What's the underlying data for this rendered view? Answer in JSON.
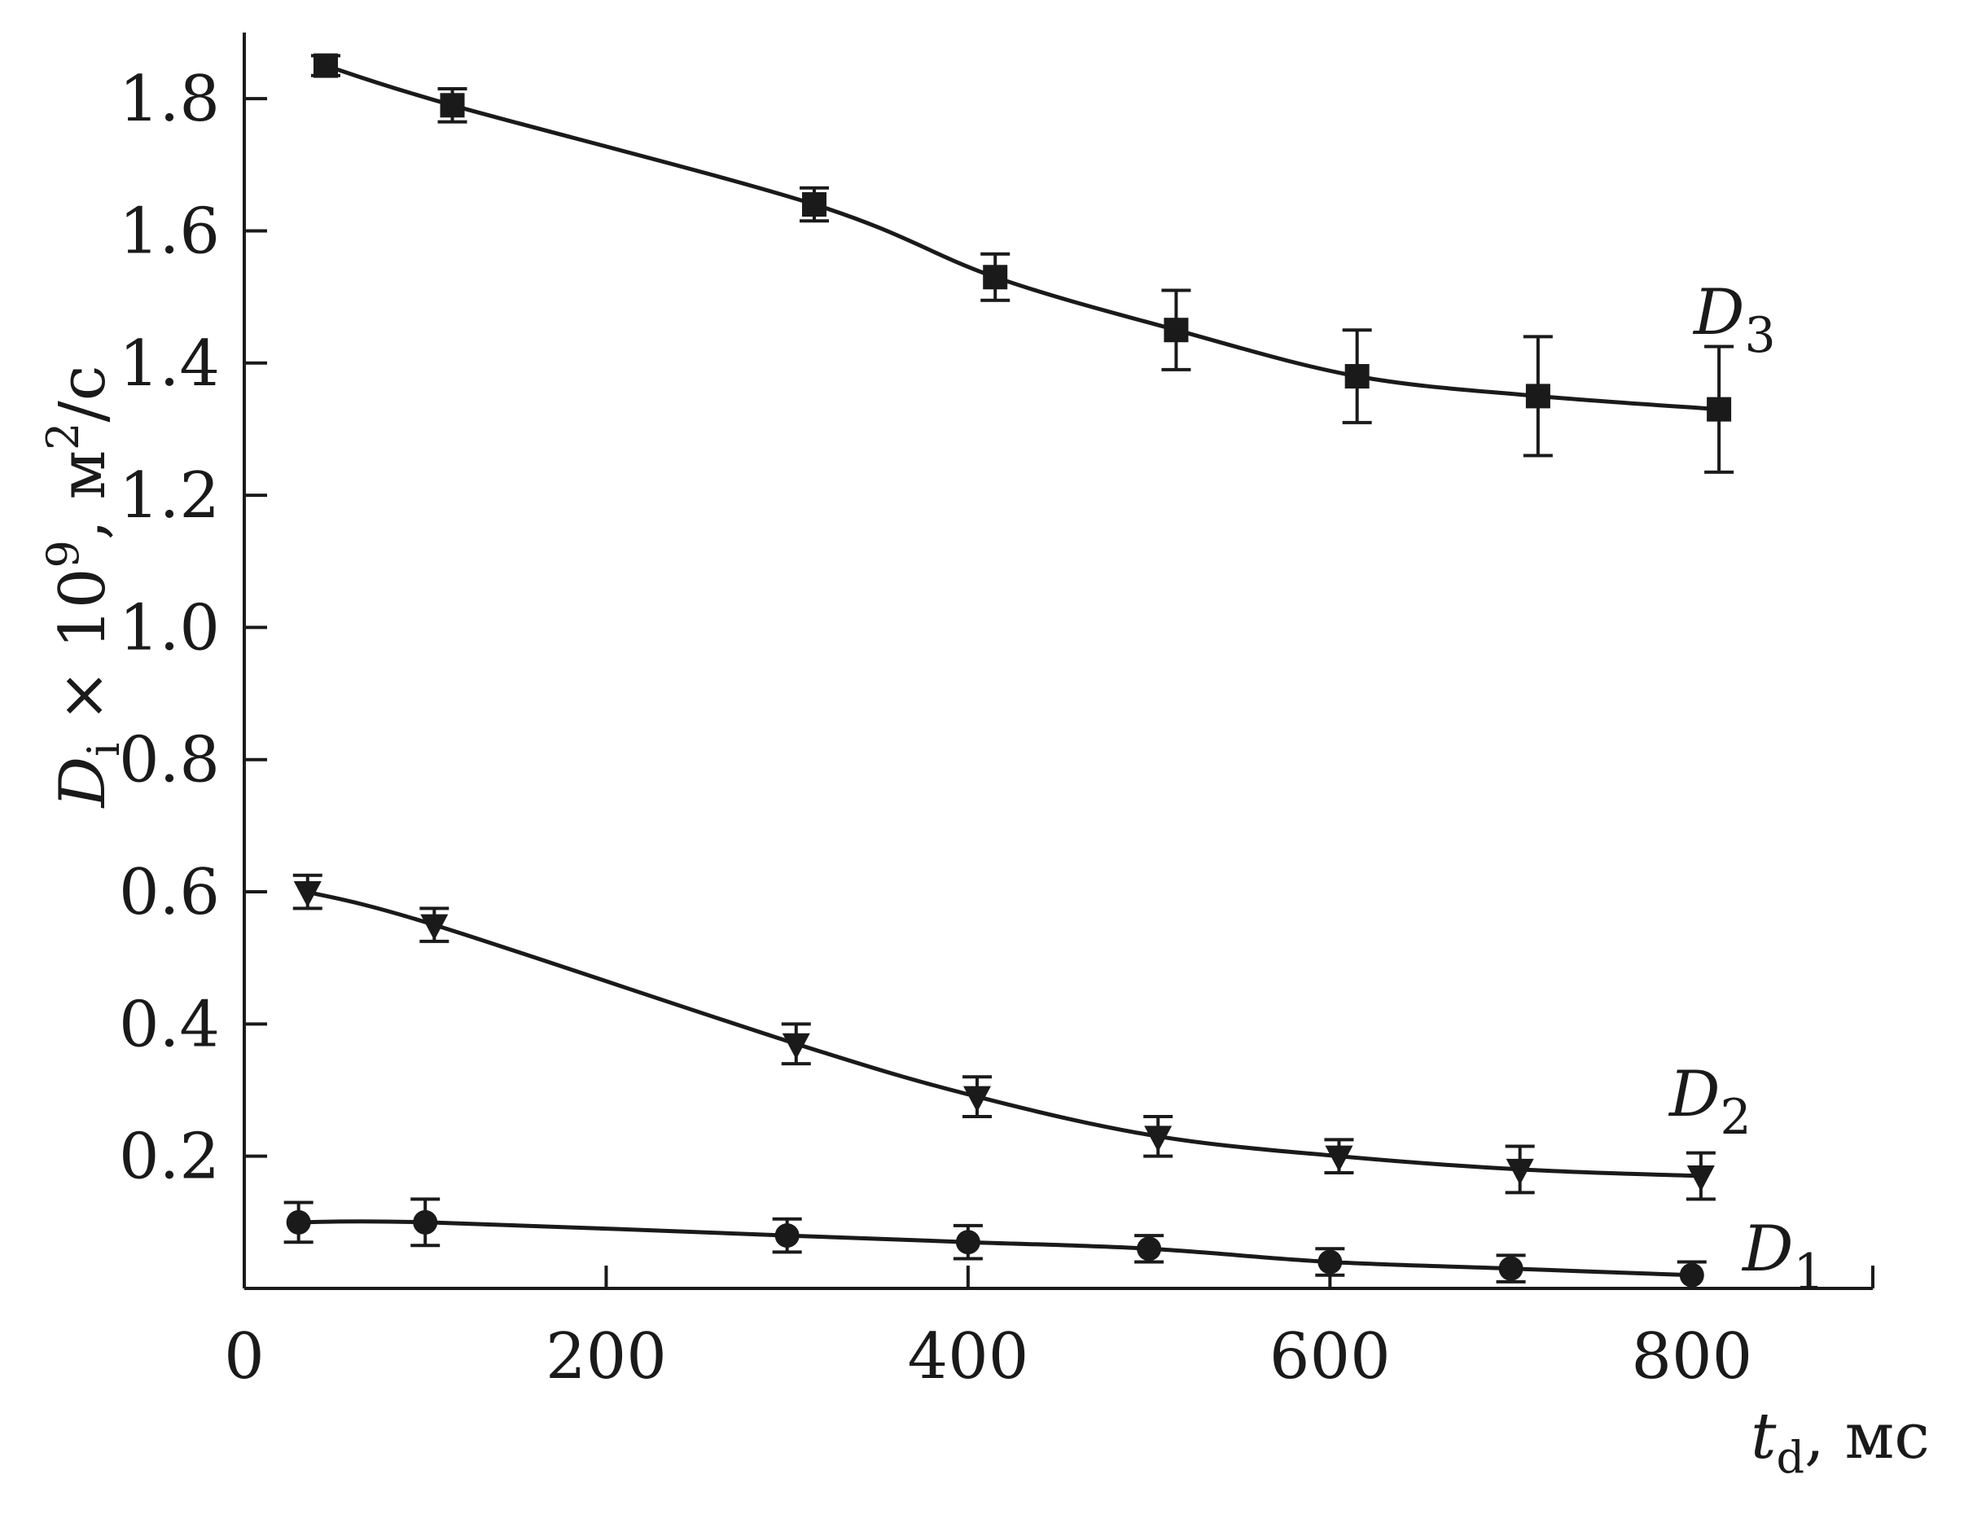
{
  "chart_data": {
    "type": "line",
    "title": "",
    "xlabel": {
      "var": "t",
      "sub": "d",
      "unit": ", мс"
    },
    "ylabel": {
      "var": "D",
      "sub": "i",
      "mid": " × 10",
      "sup": "9",
      "unit_pre": ", м",
      "unit_sup": "2",
      "unit_post": "/с"
    },
    "xlim": [
      0,
      900
    ],
    "ylim": [
      0.0,
      1.9
    ],
    "x_ticks": [
      {
        "value": 0,
        "label": "0"
      },
      {
        "value": 200,
        "label": "200"
      },
      {
        "value": 400,
        "label": "400"
      },
      {
        "value": 600,
        "label": "600"
      },
      {
        "value": 800,
        "label": "800"
      }
    ],
    "y_ticks": [
      {
        "value": 0.2,
        "label": "0.2"
      },
      {
        "value": 0.4,
        "label": "0.4"
      },
      {
        "value": 0.6,
        "label": "0.6"
      },
      {
        "value": 0.8,
        "label": "0.8"
      },
      {
        "value": 1.0,
        "label": "1.0"
      },
      {
        "value": 1.2,
        "label": "1.2"
      },
      {
        "value": 1.4,
        "label": "1.4"
      },
      {
        "value": 1.6,
        "label": "1.6"
      },
      {
        "value": 1.8,
        "label": "1.8"
      }
    ],
    "grid": false,
    "series": [
      {
        "name": "D3",
        "label_var": "D",
        "label_sub": "3",
        "marker": "square",
        "x": [
          45,
          115,
          315,
          415,
          515,
          615,
          715,
          815
        ],
        "y": [
          1.85,
          1.79,
          1.64,
          1.53,
          1.45,
          1.38,
          1.35,
          1.33
        ],
        "err": [
          0.015,
          0.025,
          0.025,
          0.035,
          0.06,
          0.07,
          0.09,
          0.095
        ]
      },
      {
        "name": "D2",
        "label_var": "D",
        "label_sub": "2",
        "marker": "triangle-down",
        "x": [
          35,
          105,
          305,
          405,
          505,
          605,
          705,
          805
        ],
        "y": [
          0.6,
          0.55,
          0.37,
          0.29,
          0.23,
          0.2,
          0.18,
          0.17
        ],
        "err": [
          0.025,
          0.025,
          0.03,
          0.03,
          0.03,
          0.025,
          0.035,
          0.035
        ]
      },
      {
        "name": "D1",
        "label_var": "D",
        "label_sub": "1",
        "marker": "circle",
        "x": [
          30,
          100,
          300,
          400,
          500,
          600,
          700,
          800
        ],
        "y": [
          0.1,
          0.1,
          0.08,
          0.07,
          0.06,
          0.04,
          0.03,
          0.02
        ],
        "err": [
          0.03,
          0.035,
          0.025,
          0.025,
          0.02,
          0.02,
          0.02,
          0.02
        ]
      }
    ]
  }
}
